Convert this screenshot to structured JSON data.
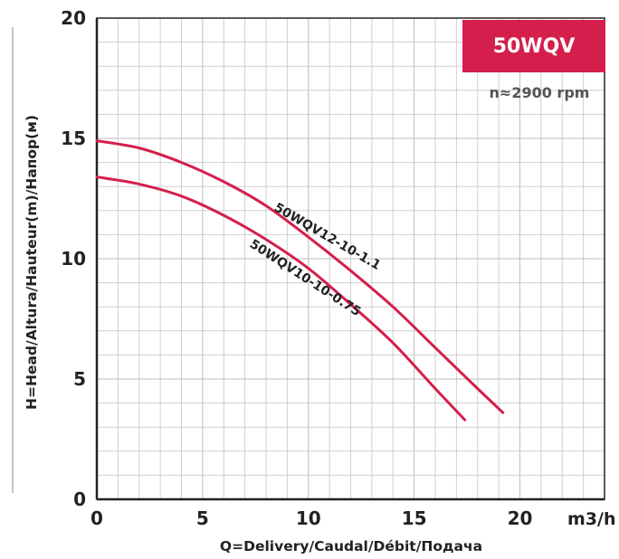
{
  "colors": {
    "accent": "#d41f4c",
    "grid": "#cfcfcf",
    "axis": "#222222"
  },
  "header": {
    "badge": "50WQV",
    "speed": "n≈2900 rpm"
  },
  "chart_data": {
    "type": "line",
    "title": "50WQV",
    "xlabel": "Q=Delivery/Caudal/Débit/Подача",
    "ylabel": "H=Head/Altura/Hauteur(m)/Напор(м)",
    "x_unit": "m3/h",
    "xlim": [
      0,
      24
    ],
    "ylim": [
      0,
      20
    ],
    "x_ticks": [
      "0",
      "5",
      "10",
      "15",
      "20"
    ],
    "y_ticks": [
      "0",
      "5",
      "10",
      "15",
      "20"
    ],
    "grid": true,
    "series": [
      {
        "name": "50WQV12-10-1.1",
        "color": "#d41f4c",
        "x": [
          0,
          2,
          4,
          6,
          8,
          10,
          12,
          14,
          16,
          18,
          19.2
        ],
        "y": [
          14.9,
          14.6,
          14.0,
          13.2,
          12.2,
          10.9,
          9.5,
          8.0,
          6.3,
          4.6,
          3.6
        ]
      },
      {
        "name": "50WQV10-10-0.75",
        "color": "#d41f4c",
        "x": [
          0,
          2,
          4,
          6,
          8,
          10,
          12,
          14,
          16,
          17.4
        ],
        "y": [
          13.4,
          13.1,
          12.6,
          11.8,
          10.8,
          9.6,
          8.1,
          6.5,
          4.6,
          3.3
        ]
      }
    ]
  }
}
